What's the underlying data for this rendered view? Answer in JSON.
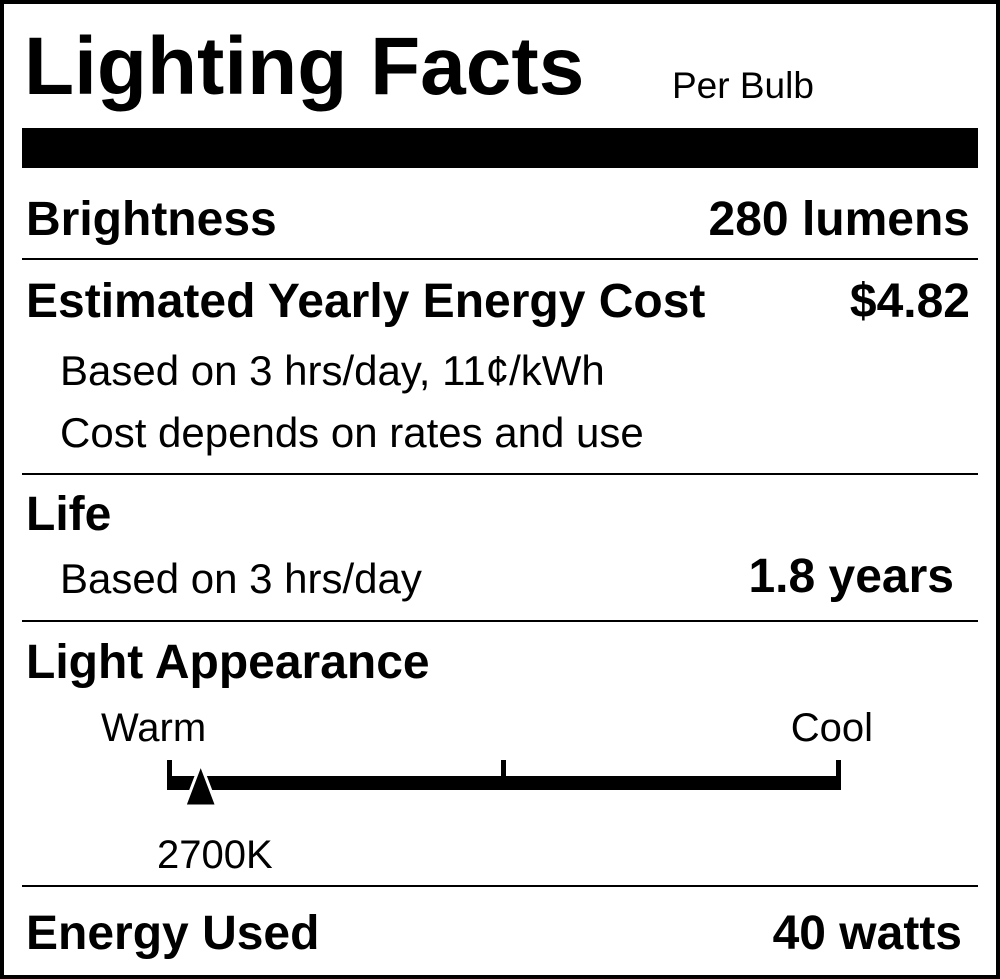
{
  "header": {
    "title": "Lighting Facts",
    "subtitle": "Per Bulb"
  },
  "brightness": {
    "label": "Brightness",
    "value": "280 lumens"
  },
  "energy_cost": {
    "label": "Estimated Yearly Energy Cost",
    "value": "$4.82",
    "note1": "Based on 3 hrs/day, 11¢/kWh",
    "note2": "Cost depends on rates and use"
  },
  "life": {
    "label": "Life",
    "note": "Based on 3 hrs/day",
    "value": "1.8 years"
  },
  "appearance": {
    "label": "Light Appearance",
    "warm_label": "Warm",
    "cool_label": "Cool",
    "marker_value": "2700K",
    "marker_position_fraction": 0.05
  },
  "energy_used": {
    "label": "Energy Used",
    "value": "40 watts"
  }
}
